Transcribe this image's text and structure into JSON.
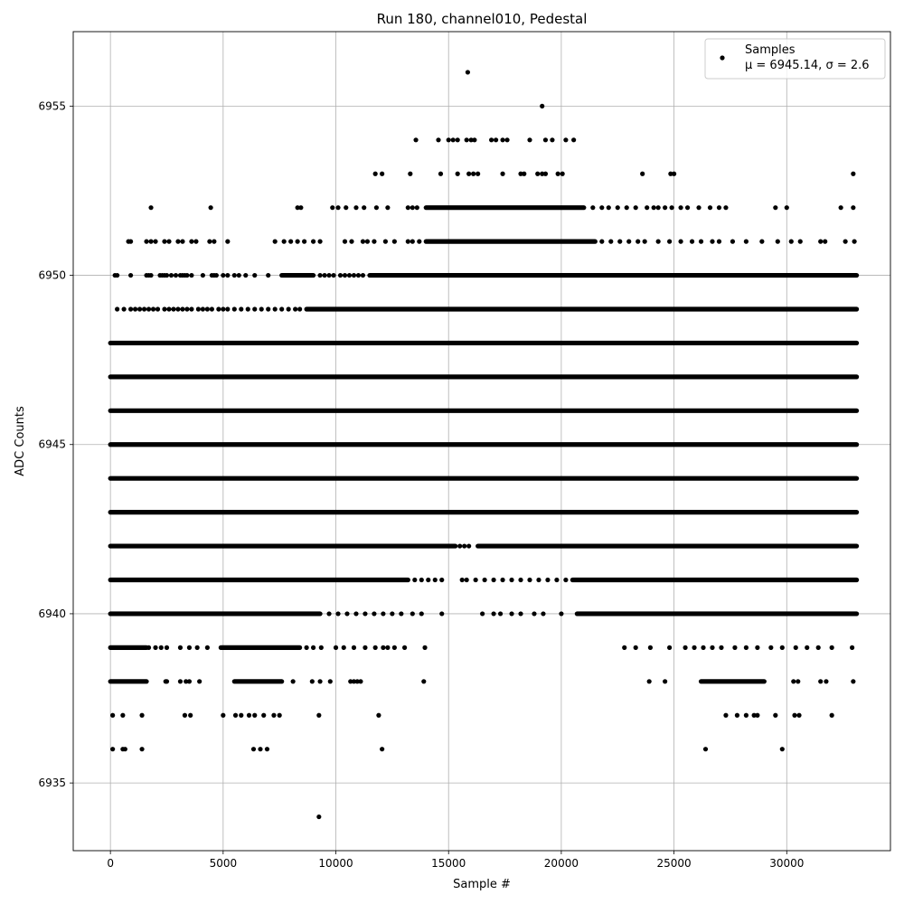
{
  "chart_data": {
    "type": "scatter",
    "title": "Run 180, channel010, Pedestal",
    "xlabel": "Sample #",
    "ylabel": "ADC Counts",
    "xlim": [
      -1650,
      34600
    ],
    "ylim": [
      6933,
      6957.2
    ],
    "grid": true,
    "legend_placement": "top-right",
    "marker_color": "#000000",
    "x_ticks": [
      0,
      5000,
      10000,
      15000,
      20000,
      25000,
      30000
    ],
    "y_ticks": [
      6935,
      6940,
      6945,
      6950,
      6955
    ],
    "series": [
      {
        "name": "Samples",
        "stats_label": "μ = 6945.14, σ = 2.6",
        "x_range": [
          0,
          33100
        ],
        "mu": 6945.14,
        "sigma": 2.6,
        "levels": [
          {
            "y": 6934,
            "segments": [],
            "points": [
              9250
            ]
          },
          {
            "y": 6936,
            "segments": [],
            "points": [
              100,
              550,
              650,
              1400,
              6350,
              6650,
              6950,
              12050,
              26400,
              29800
            ]
          },
          {
            "y": 6937,
            "segments": [],
            "points": [
              100,
              550,
              1400,
              3300,
              3550,
              5000,
              5550,
              5800,
              6150,
              6400,
              6800,
              7250,
              7500,
              9250,
              11900,
              27300,
              27800,
              28200,
              28550,
              28700,
              29500,
              30350,
              30550,
              32000
            ]
          },
          {
            "y": 6938,
            "segments": [
              [
                0,
                1600
              ],
              [
                5500,
                7600
              ],
              [
                26200,
                29000
              ]
            ],
            "points": [
              2450,
              2500,
              3100,
              3350,
              3500,
              3950,
              8100,
              8950,
              9300,
              9750,
              10650,
              10800,
              10950,
              11100,
              13900,
              23900,
              24600,
              30300,
              30500,
              31500,
              31750,
              32950
            ]
          },
          {
            "y": 6939,
            "segments": [
              [
                0,
                1600
              ],
              [
                4900,
                8400
              ]
            ],
            "points": [
              1700,
              2000,
              2250,
              2500,
              3100,
              3500,
              3850,
              4300,
              8700,
              9000,
              9350,
              10000,
              10350,
              10800,
              11300,
              11750,
              12100,
              12300,
              12600,
              13050,
              13950,
              22800,
              23300,
              23950,
              24800,
              25500,
              25900,
              26300,
              26700,
              27100,
              27700,
              28200,
              28700,
              29300,
              29800,
              30400,
              30900,
              31400,
              32000,
              32900
            ]
          },
          {
            "y": 6940,
            "segments": [
              [
                0,
                9300
              ],
              [
                20700,
                33100
              ]
            ],
            "points": [
              9700,
              10100,
              10500,
              10900,
              11300,
              11700,
              12100,
              12500,
              12900,
              13400,
              13800,
              14700,
              16500,
              17000,
              17300,
              17800,
              18200,
              18800,
              19200,
              20000
            ]
          },
          {
            "y": 6941,
            "segments": [
              [
                0,
                13200
              ],
              [
                20500,
                33100
              ]
            ],
            "points": [
              13500,
              13800,
              14100,
              14400,
              14700,
              15600,
              15800,
              16200,
              16600,
              17000,
              17400,
              17800,
              18200,
              18600,
              19000,
              19400,
              19800,
              20200
            ]
          },
          {
            "y": 6942,
            "segments": [
              [
                0,
                15300
              ],
              [
                16300,
                33100
              ]
            ],
            "points": [
              15500,
              15700,
              15900
            ]
          },
          {
            "y": 6943,
            "segments": [
              [
                0,
                33100
              ]
            ],
            "points": []
          },
          {
            "y": 6944,
            "segments": [
              [
                0,
                33100
              ]
            ],
            "points": []
          },
          {
            "y": 6945,
            "segments": [
              [
                0,
                33100
              ]
            ],
            "points": []
          },
          {
            "y": 6946,
            "segments": [
              [
                0,
                33100
              ]
            ],
            "points": []
          },
          {
            "y": 6947,
            "segments": [
              [
                0,
                33100
              ]
            ],
            "points": []
          },
          {
            "y": 6948,
            "segments": [
              [
                0,
                33100
              ]
            ],
            "points": []
          },
          {
            "y": 6949,
            "segments": [
              [
                8700,
                33100
              ]
            ],
            "points": [
              300,
              600,
              900,
              1100,
              1300,
              1500,
              1700,
              1900,
              2100,
              2400,
              2600,
              2800,
              3000,
              3200,
              3400,
              3600,
              3900,
              4100,
              4300,
              4500,
              4800,
              5000,
              5200,
              5500,
              5800,
              6100,
              6400,
              6700,
              7000,
              7300,
              7600,
              7900,
              8200,
              8400
            ]
          },
          {
            "y": 6950,
            "segments": [
              [
                7600,
                9000
              ],
              [
                11500,
                33100
              ]
            ],
            "points": [
              200,
              300,
              900,
              1600,
              1700,
              1800,
              2200,
              2300,
              2400,
              2500,
              2700,
              2900,
              3100,
              3200,
              3300,
              3400,
              3600,
              4100,
              4500,
              4600,
              4700,
              5000,
              5200,
              5500,
              5700,
              6000,
              6400,
              7000,
              9300,
              9500,
              9700,
              9900,
              10200,
              10400,
              10600,
              10800,
              11000,
              11200
            ]
          },
          {
            "y": 6951,
            "segments": [
              [
                14000,
                21500
              ]
            ],
            "points": [
              800,
              900,
              1600,
              1800,
              2000,
              2400,
              2600,
              3000,
              3200,
              3600,
              3800,
              4400,
              4600,
              5200,
              7300,
              7700,
              8000,
              8300,
              8600,
              9000,
              9300,
              10400,
              10700,
              11200,
              11400,
              11700,
              12200,
              12600,
              13200,
              13400,
              13700,
              21800,
              22200,
              22600,
              23000,
              23400,
              23700,
              24300,
              24800,
              25300,
              25800,
              26200,
              26700,
              27000,
              27600,
              28200,
              28900,
              29600,
              30200,
              30600,
              31500,
              31700,
              32600,
              33000
            ]
          },
          {
            "y": 6952,
            "segments": [
              [
                14000,
                21000
              ]
            ],
            "points": [
              1800,
              4450,
              8300,
              8450,
              9850,
              10100,
              10450,
              10900,
              11250,
              11800,
              12300,
              13200,
              13400,
              13600,
              21400,
              21800,
              22100,
              22500,
              22900,
              23300,
              23800,
              24100,
              24300,
              24600,
              24900,
              25300,
              25600,
              26100,
              26600,
              27000,
              27300,
              29500,
              30000,
              32400,
              32950
            ]
          },
          {
            "y": 6953,
            "segments": [],
            "points": [
              11750,
              12050,
              13300,
              14650,
              15400,
              15900,
              16100,
              16300,
              17400,
              18200,
              18350,
              18950,
              19150,
              19300,
              19850,
              20050,
              23600,
              24850,
              25000,
              32950
            ]
          },
          {
            "y": 6954,
            "segments": [],
            "points": [
              13550,
              14550,
              15000,
              15200,
              15400,
              15800,
              16000,
              16150,
              16900,
              17100,
              17400,
              17600,
              18600,
              19300,
              19600,
              20200,
              20550
            ]
          },
          {
            "y": 6955,
            "segments": [],
            "points": [
              19150
            ]
          },
          {
            "y": 6956,
            "segments": [],
            "points": [
              15850
            ]
          }
        ]
      }
    ]
  }
}
